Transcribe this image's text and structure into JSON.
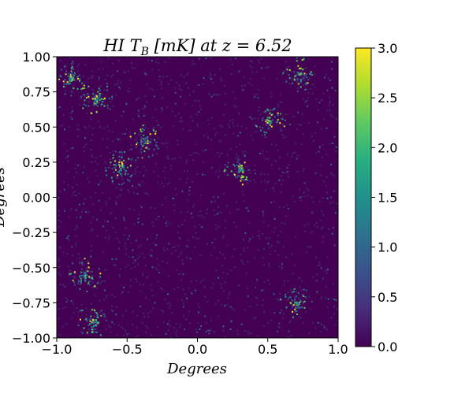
{
  "chart_data": {
    "type": "heatmap",
    "title": {
      "prefix": "HI T",
      "subscript": "B",
      "suffix": " [mK] at z = 6.52"
    },
    "xlabel": "Degrees",
    "ylabel": "Degrees",
    "xlim": [
      -1.0,
      1.0
    ],
    "ylim": [
      -1.0,
      1.0
    ],
    "x_ticks": [
      "−1.0",
      "−0.5",
      "0.0",
      "0.5",
      "1.0"
    ],
    "x_tick_values": [
      -1.0,
      -0.5,
      0.0,
      0.5,
      1.0
    ],
    "y_ticks": [
      "−1.00",
      "−0.75",
      "−0.50",
      "−0.25",
      "0.00",
      "0.25",
      "0.50",
      "0.75",
      "1.00"
    ],
    "y_tick_values": [
      -1.0,
      -0.75,
      -0.5,
      -0.25,
      0.0,
      0.25,
      0.5,
      0.75,
      1.0
    ],
    "colorbar": {
      "colormap": "viridis",
      "range": [
        0.0,
        3.0
      ],
      "ticks": [
        "0.0",
        "0.5",
        "1.0",
        "1.5",
        "2.0",
        "2.5",
        "3.0"
      ],
      "tick_values": [
        0.0,
        0.5,
        1.0,
        1.5,
        2.0,
        2.5,
        3.0
      ]
    },
    "bright_regions": [
      {
        "x": -0.55,
        "y": 0.22
      },
      {
        "x": -0.38,
        "y": 0.4
      },
      {
        "x": -0.72,
        "y": 0.7
      },
      {
        "x": 0.5,
        "y": 0.55
      },
      {
        "x": 0.72,
        "y": 0.88
      },
      {
        "x": -0.8,
        "y": -0.55
      },
      {
        "x": -0.75,
        "y": -0.88
      },
      {
        "x": 0.7,
        "y": -0.75
      },
      {
        "x": 0.3,
        "y": 0.2
      },
      {
        "x": -0.9,
        "y": 0.85
      }
    ]
  }
}
